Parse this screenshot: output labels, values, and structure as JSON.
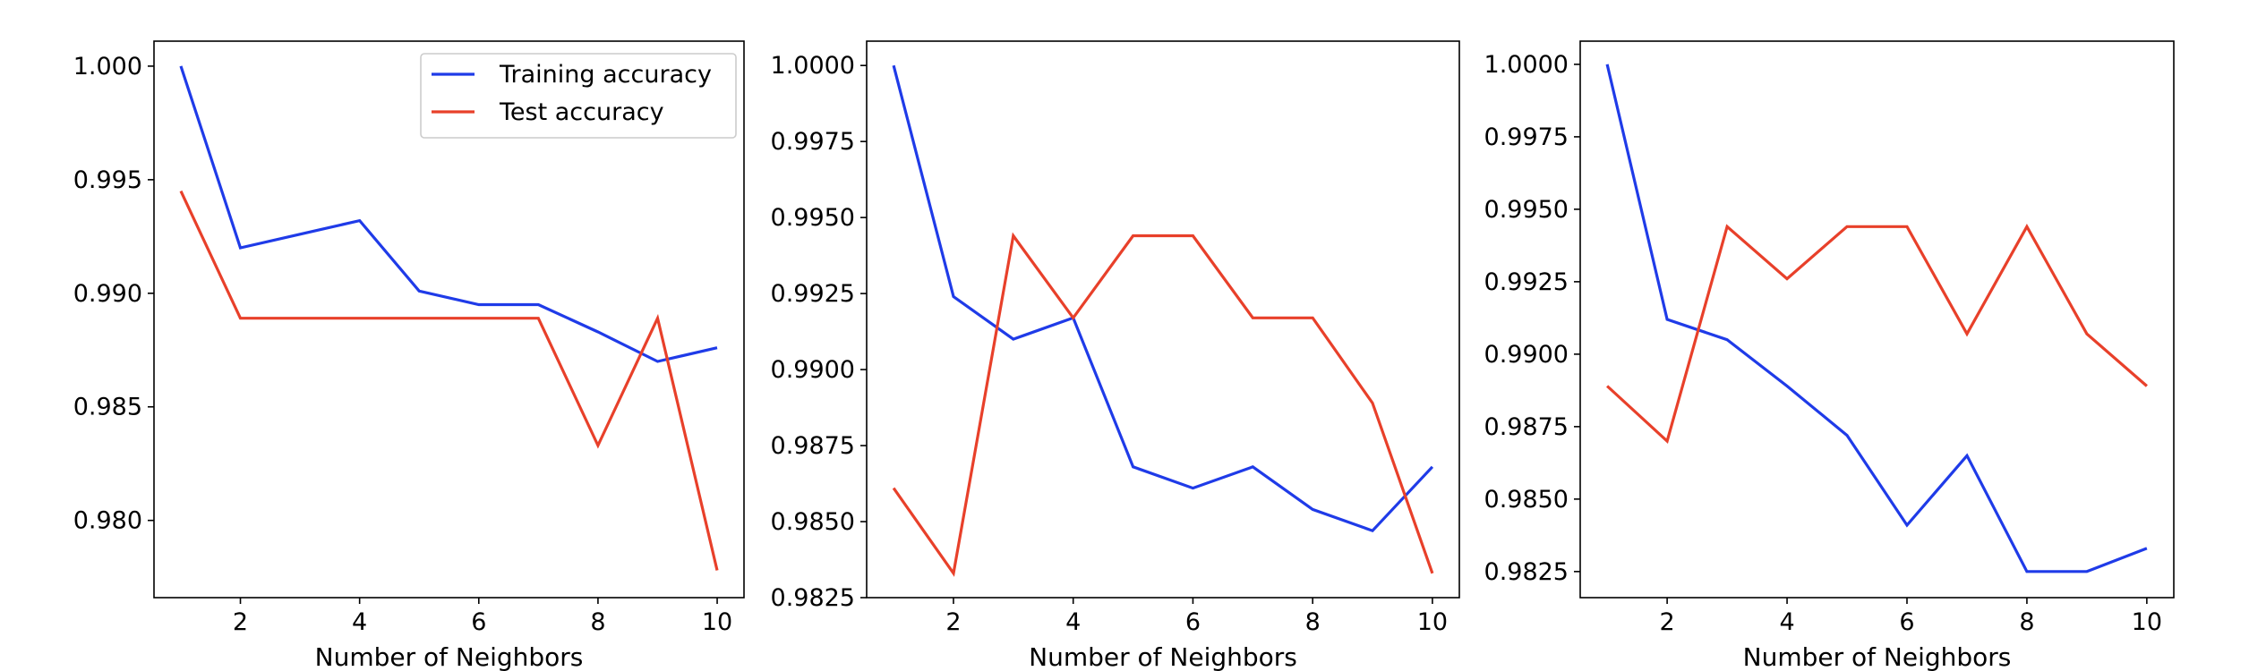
{
  "chart_data": [
    {
      "type": "line",
      "x": [
        1,
        2,
        3,
        4,
        5,
        6,
        7,
        8,
        9,
        10
      ],
      "xlabel": "Number of Neighbors",
      "ylabel": "",
      "xlim": [
        0.55,
        10.45
      ],
      "ylim": [
        0.9766,
        1.0011
      ],
      "xticks": [
        2,
        4,
        6,
        8,
        10
      ],
      "xtick_labels": [
        "2",
        "4",
        "6",
        "8",
        "10"
      ],
      "yticks": [
        0.98,
        0.985,
        0.99,
        0.995,
        1.0
      ],
      "ytick_labels": [
        "0.980",
        "0.985",
        "0.990",
        "0.995",
        "1.000"
      ],
      "grid": false,
      "legend": "top-right",
      "series": [
        {
          "name": "Training accuracy",
          "color": "#1f3be8",
          "values": [
            1.0,
            0.992,
            0.9926,
            0.9932,
            0.9901,
            0.9895,
            0.9895,
            0.9883,
            0.987,
            0.9876
          ]
        },
        {
          "name": "Test accuracy",
          "color": "#e8402a",
          "values": [
            0.9945,
            0.9889,
            0.9889,
            0.9889,
            0.9889,
            0.9889,
            0.9889,
            0.9833,
            0.9889,
            0.9778
          ]
        }
      ]
    },
    {
      "type": "line",
      "x": [
        1,
        2,
        3,
        4,
        5,
        6,
        7,
        8,
        9,
        10
      ],
      "xlabel": "Number of Neighbors",
      "ylabel": "",
      "xlim": [
        0.55,
        10.45
      ],
      "ylim": [
        0.9825,
        1.0008
      ],
      "xticks": [
        2,
        4,
        6,
        8,
        10
      ],
      "xtick_labels": [
        "2",
        "4",
        "6",
        "8",
        "10"
      ],
      "yticks": [
        0.9825,
        0.985,
        0.9875,
        0.99,
        0.9925,
        0.995,
        0.9975,
        1.0
      ],
      "ytick_labels": [
        "0.9825",
        "0.9850",
        "0.9875",
        "0.9900",
        "0.9925",
        "0.9950",
        "0.9975",
        "1.0000"
      ],
      "grid": false,
      "series": [
        {
          "color": "#1f3be8",
          "values": [
            1.0,
            0.9924,
            0.991,
            0.9917,
            0.9868,
            0.9861,
            0.9868,
            0.9854,
            0.9847,
            0.9868
          ]
        },
        {
          "color": "#e8402a",
          "values": [
            0.9861,
            0.9833,
            0.9944,
            0.9917,
            0.9944,
            0.9944,
            0.9917,
            0.9917,
            0.9889,
            0.9833
          ]
        }
      ]
    },
    {
      "type": "line",
      "x": [
        1,
        2,
        3,
        4,
        5,
        6,
        7,
        8,
        9,
        10
      ],
      "xlabel": "Number of Neighbors",
      "ylabel": "",
      "xlim": [
        0.55,
        10.45
      ],
      "ylim": [
        0.9816,
        1.0008
      ],
      "xticks": [
        2,
        4,
        6,
        8,
        10
      ],
      "xtick_labels": [
        "2",
        "4",
        "6",
        "8",
        "10"
      ],
      "yticks": [
        0.9825,
        0.985,
        0.9875,
        0.99,
        0.9925,
        0.995,
        0.9975,
        1.0
      ],
      "ytick_labels": [
        "0.9825",
        "0.9850",
        "0.9875",
        "0.9900",
        "0.9925",
        "0.9950",
        "0.9975",
        "1.0000"
      ],
      "grid": false,
      "series": [
        {
          "color": "#1f3be8",
          "values": [
            1.0,
            0.9912,
            0.9905,
            0.9889,
            0.9872,
            0.9841,
            0.9865,
            0.9825,
            0.9825,
            0.9833
          ]
        },
        {
          "color": "#e8402a",
          "values": [
            0.9889,
            0.987,
            0.9944,
            0.9926,
            0.9944,
            0.9944,
            0.9907,
            0.9944,
            0.9907,
            0.9889
          ]
        }
      ]
    }
  ]
}
